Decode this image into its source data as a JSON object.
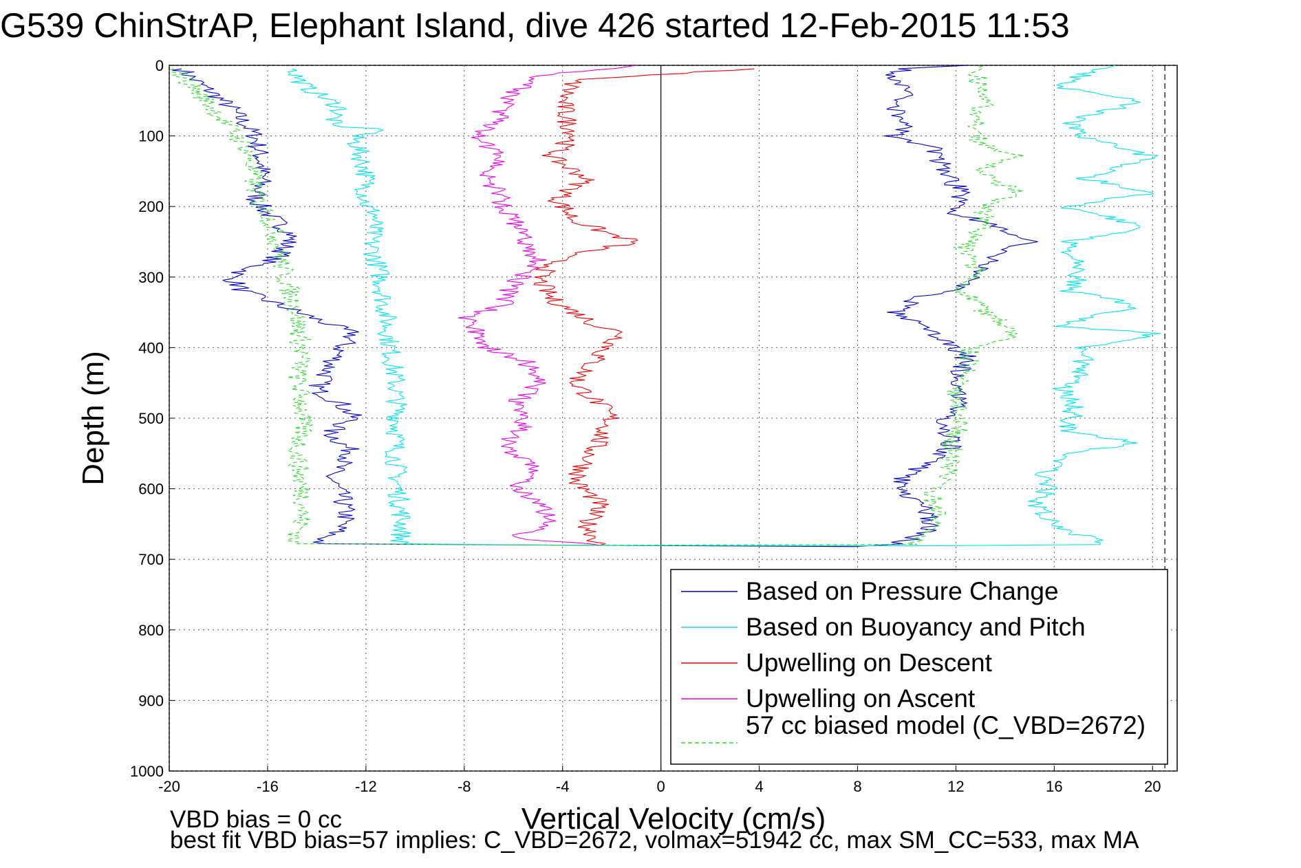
{
  "title": "G539 ChinStrAP, Elephant Island, dive 426 started 12-Feb-2015 11:53",
  "footer": {
    "line1": "VBD bias = 0 cc",
    "line2": "best fit VBD bias=57 implies: C_VBD=2672, volmax=51942 cc, max SM_CC=533, max MA"
  },
  "chart_data": {
    "type": "line",
    "xlabel": "Vertical Velocity (cm/s)",
    "ylabel": "Depth (m)",
    "xlim": [
      -20,
      21
    ],
    "ylim": [
      0,
      1000
    ],
    "y_reversed": true,
    "grid": true,
    "xticks": [
      -20,
      -16,
      -12,
      -8,
      -4,
      0,
      4,
      8,
      12,
      16,
      20
    ],
    "yticks": [
      0,
      100,
      200,
      300,
      400,
      500,
      600,
      700,
      800,
      900,
      1000
    ],
    "legend_placement": "bottom-right",
    "series": [
      {
        "name": "Based on Pressure Change",
        "color": "#0000cc",
        "style": "solid",
        "points": [
          [
            -19.5,
            5
          ],
          [
            -19,
            20
          ],
          [
            -18.2,
            40
          ],
          [
            -17.5,
            60
          ],
          [
            -17,
            80
          ],
          [
            -16.5,
            100
          ],
          [
            -16.3,
            130
          ],
          [
            -16.2,
            160
          ],
          [
            -16.5,
            190
          ],
          [
            -16,
            210
          ],
          [
            -15,
            240
          ],
          [
            -15.5,
            270
          ],
          [
            -17.5,
            300
          ],
          [
            -17,
            320
          ],
          [
            -15.5,
            340
          ],
          [
            -14,
            360
          ],
          [
            -12.5,
            380
          ],
          [
            -13,
            400
          ],
          [
            -13.5,
            430
          ],
          [
            -14,
            460
          ],
          [
            -13,
            480
          ],
          [
            -12.5,
            500
          ],
          [
            -13.5,
            520
          ],
          [
            -12.5,
            550
          ],
          [
            -13.5,
            580
          ],
          [
            -13,
            610
          ],
          [
            -12.8,
            640
          ],
          [
            -13.2,
            660
          ],
          [
            -14,
            678
          ],
          [
            -4,
            680
          ],
          [
            8,
            682
          ],
          [
            9.5,
            678
          ],
          [
            10.8,
            665
          ],
          [
            11,
            640
          ],
          [
            10,
            605
          ],
          [
            9.7,
            590
          ],
          [
            10.5,
            570
          ],
          [
            11.8,
            540
          ],
          [
            11.6,
            500
          ],
          [
            12.2,
            470
          ],
          [
            12.2,
            440
          ],
          [
            12.4,
            410
          ],
          [
            11,
            380
          ],
          [
            9.5,
            350
          ],
          [
            10.5,
            330
          ],
          [
            12.5,
            310
          ],
          [
            13,
            290
          ],
          [
            13.5,
            270
          ],
          [
            15,
            250
          ],
          [
            14,
            230
          ],
          [
            12,
            210
          ],
          [
            12.2,
            180
          ],
          [
            11.5,
            150
          ],
          [
            11.2,
            120
          ],
          [
            9.5,
            100
          ],
          [
            10,
            80
          ],
          [
            9.5,
            60
          ],
          [
            10.2,
            40
          ],
          [
            9.2,
            20
          ],
          [
            10,
            5
          ],
          [
            12.5,
            0
          ]
        ]
      },
      {
        "name": "Based on Buoyancy and Pitch",
        "color": "#00e5ee",
        "style": "solid",
        "points": [
          [
            -15,
            5
          ],
          [
            -14.5,
            30
          ],
          [
            -13,
            60
          ],
          [
            -13.5,
            85
          ],
          [
            -11,
            92
          ],
          [
            -12.5,
            100
          ],
          [
            -12,
            150
          ],
          [
            -12,
            200
          ],
          [
            -11.6,
            210
          ],
          [
            -11.8,
            250
          ],
          [
            -11.4,
            300
          ],
          [
            -11.2,
            350
          ],
          [
            -11,
            400
          ],
          [
            -10.8,
            450
          ],
          [
            -10.7,
            500
          ],
          [
            -10.8,
            550
          ],
          [
            -10.7,
            600
          ],
          [
            -10.5,
            650
          ],
          [
            -10.6,
            678
          ],
          [
            -4,
            680
          ],
          [
            10,
            681
          ],
          [
            18,
            679
          ],
          [
            16,
            650
          ],
          [
            15.2,
            620
          ],
          [
            15.8,
            600
          ],
          [
            15.6,
            580
          ],
          [
            16.4,
            550
          ],
          [
            19.5,
            535
          ],
          [
            16.6,
            520
          ],
          [
            16.8,
            480
          ],
          [
            16.3,
            460
          ],
          [
            17.3,
            430
          ],
          [
            17,
            400
          ],
          [
            20.3,
            380
          ],
          [
            16.2,
            370
          ],
          [
            19.5,
            340
          ],
          [
            16.5,
            320
          ],
          [
            17,
            300
          ],
          [
            16.8,
            280
          ],
          [
            16.6,
            250
          ],
          [
            19.8,
            230
          ],
          [
            16.5,
            200
          ],
          [
            20,
            180
          ],
          [
            17.1,
            160
          ],
          [
            20,
            130
          ],
          [
            17,
            100
          ],
          [
            16.7,
            80
          ],
          [
            19.6,
            50
          ],
          [
            16,
            30
          ],
          [
            17.4,
            10
          ],
          [
            18.5,
            0
          ]
        ]
      },
      {
        "name": "Upwelling on Descent",
        "color": "#ee0000",
        "style": "solid",
        "points": [
          [
            3.8,
            5
          ],
          [
            -3.5,
            20
          ],
          [
            -4,
            50
          ],
          [
            -3.8,
            80
          ],
          [
            -3.5,
            100
          ],
          [
            -4.5,
            130
          ],
          [
            -3,
            160
          ],
          [
            -4.2,
            190
          ],
          [
            -3.5,
            220
          ],
          [
            -2,
            240
          ],
          [
            -1,
            250
          ],
          [
            -4,
            270
          ],
          [
            -5,
            300
          ],
          [
            -4.5,
            330
          ],
          [
            -2.5,
            370
          ],
          [
            -1.5,
            380
          ],
          [
            -2.5,
            410
          ],
          [
            -3.5,
            450
          ],
          [
            -2.5,
            480
          ],
          [
            -2,
            500
          ],
          [
            -2.5,
            530
          ],
          [
            -3,
            560
          ],
          [
            -3.5,
            590
          ],
          [
            -2.5,
            620
          ],
          [
            -3,
            650
          ],
          [
            -2.5,
            680
          ]
        ]
      },
      {
        "name": "Upwelling on Ascent",
        "color": "#ee00ee",
        "style": "solid",
        "points": [
          [
            -2.5,
            680
          ],
          [
            -6,
            670
          ],
          [
            -4.5,
            650
          ],
          [
            -5,
            620
          ],
          [
            -6,
            600
          ],
          [
            -5,
            570
          ],
          [
            -6.5,
            540
          ],
          [
            -5.5,
            510
          ],
          [
            -6,
            480
          ],
          [
            -5,
            450
          ],
          [
            -5.5,
            420
          ],
          [
            -7,
            400
          ],
          [
            -7.5,
            380
          ],
          [
            -8,
            360
          ],
          [
            -6.5,
            340
          ],
          [
            -6,
            310
          ],
          [
            -5,
            280
          ],
          [
            -5.5,
            250
          ],
          [
            -6,
            220
          ],
          [
            -6.5,
            190
          ],
          [
            -7,
            160
          ],
          [
            -6.5,
            130
          ],
          [
            -7.5,
            100
          ],
          [
            -6.5,
            70
          ],
          [
            -6,
            40
          ],
          [
            -5.2,
            15
          ],
          [
            -1,
            0
          ]
        ]
      },
      {
        "name": "57 cc biased model (C_VBD=2672)",
        "color": "#22dd22",
        "style": "dashed",
        "points": [
          [
            -19.8,
            5
          ],
          [
            -19.2,
            25
          ],
          [
            -18.5,
            50
          ],
          [
            -17.5,
            90
          ],
          [
            -16.8,
            120
          ],
          [
            -16.6,
            160
          ],
          [
            -16.4,
            190
          ],
          [
            -16,
            210
          ],
          [
            -15.6,
            250
          ],
          [
            -15.3,
            300
          ],
          [
            -14.9,
            340
          ],
          [
            -14.7,
            380
          ],
          [
            -14.6,
            420
          ],
          [
            -14.8,
            440
          ],
          [
            -14.6,
            480
          ],
          [
            -14.6,
            520
          ],
          [
            -14.8,
            550
          ],
          [
            -14.7,
            580
          ],
          [
            -14.5,
            620
          ],
          [
            -14.7,
            660
          ],
          [
            -15,
            678
          ],
          [
            -3,
            680
          ],
          [
            10,
            679
          ],
          [
            11,
            665
          ],
          [
            11.2,
            640
          ],
          [
            11,
            610
          ],
          [
            11.8,
            580
          ],
          [
            11.8,
            540
          ],
          [
            12.2,
            500
          ],
          [
            11.9,
            460
          ],
          [
            12.4,
            430
          ],
          [
            12.6,
            400
          ],
          [
            14.5,
            380
          ],
          [
            13.2,
            350
          ],
          [
            12.2,
            320
          ],
          [
            12.8,
            290
          ],
          [
            12.3,
            260
          ],
          [
            13,
            230
          ],
          [
            13.2,
            200
          ],
          [
            14.5,
            180
          ],
          [
            13,
            150
          ],
          [
            14.5,
            130
          ],
          [
            13,
            110
          ],
          [
            12.8,
            80
          ],
          [
            13.2,
            50
          ],
          [
            12.8,
            20
          ],
          [
            13.2,
            0
          ]
        ]
      }
    ],
    "annotations": [
      {
        "type": "vline",
        "x": 0,
        "style": "solid",
        "color": "#000000"
      },
      {
        "type": "vline",
        "x": 20.5,
        "style": "dashed",
        "color": "#000000"
      }
    ]
  }
}
